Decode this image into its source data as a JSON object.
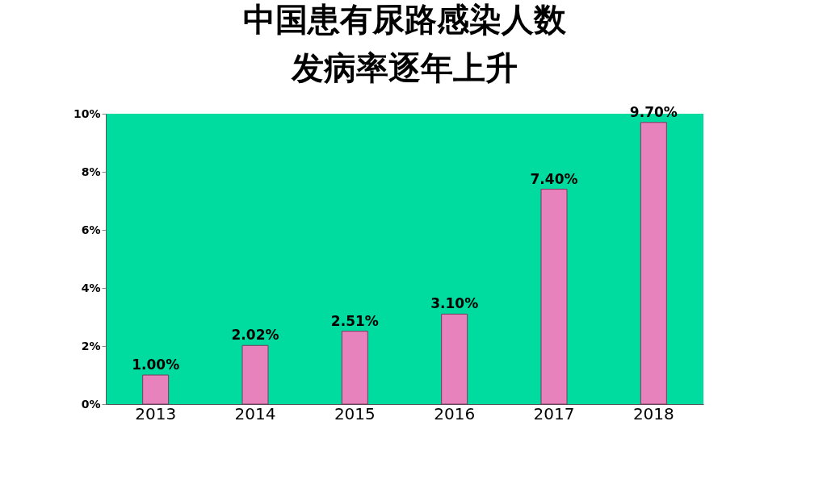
{
  "chart_data": {
    "type": "bar",
    "title": "中国患有尿路感染人数",
    "subtitle": "发病率逐年上升",
    "categories": [
      "2013",
      "2014",
      "2015",
      "2016",
      "2017",
      "2018"
    ],
    "values": [
      1.0,
      2.02,
      2.51,
      3.1,
      7.4,
      9.7
    ],
    "value_labels": [
      "1.00%",
      "2.02%",
      "2.51%",
      "3.10%",
      "7.40%",
      "9.70%"
    ],
    "color": "#e882bc",
    "ylim": [
      0,
      10
    ],
    "yticks": [
      {
        "value": 0,
        "label": "0%"
      },
      {
        "value": 2,
        "label": "2%"
      },
      {
        "value": 4,
        "label": "4%"
      },
      {
        "value": 6,
        "label": "6%"
      },
      {
        "value": 8,
        "label": "8%"
      },
      {
        "value": 10,
        "label": "10%"
      }
    ],
    "grid": false
  }
}
